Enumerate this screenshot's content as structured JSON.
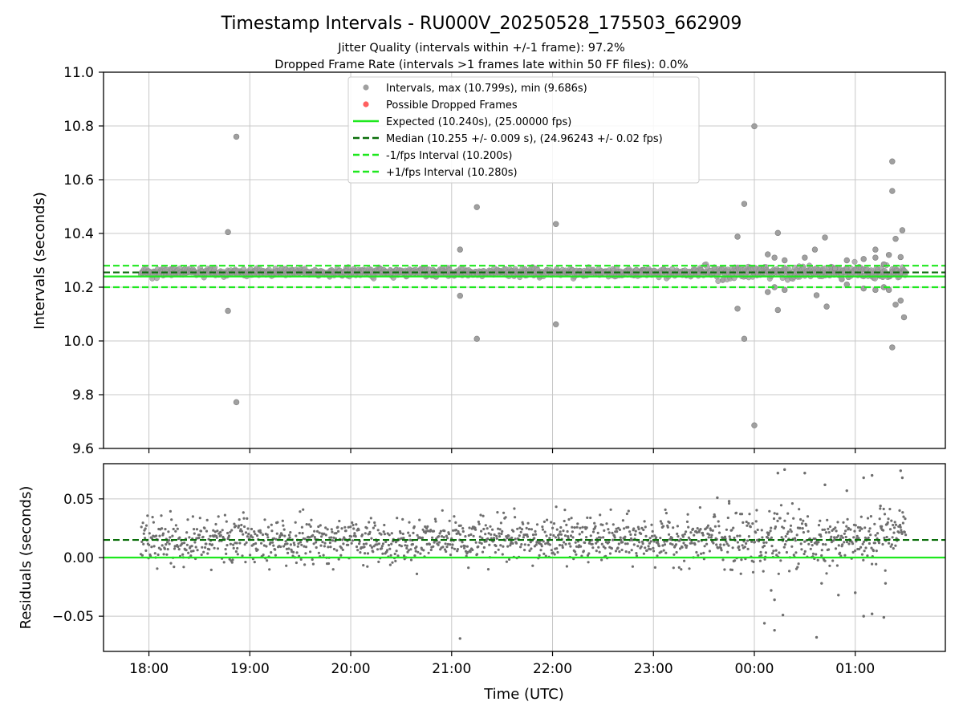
{
  "chart_data": {
    "type": "scatter",
    "title": "Timestamp Intervals - RU000V_20250528_175503_662909",
    "subtitles": [
      "Jitter Quality (intervals within +/-1 frame): 97.2%",
      "Dropped Frame Rate (intervals >1 frames late within 50 FF files): 0.0%"
    ],
    "xlabel": "Time (UTC)",
    "x_start": "17:33",
    "x_end": "01:53",
    "x_range_hours": [
      17.55,
      25.893
    ],
    "x_ticks": [
      "18:00",
      "19:00",
      "20:00",
      "21:00",
      "22:00",
      "23:00",
      "00:00",
      "01:00"
    ],
    "x_tick_hours": [
      18,
      19,
      20,
      21,
      22,
      23,
      24,
      25
    ],
    "grid": true,
    "legend_placement": "upper center",
    "colors": {
      "intervals": "#a0a0a0",
      "dropped": "#ff6060",
      "expected": "#1ee81e",
      "median": "#0a6e0a",
      "bounds": "#1ee81e",
      "residuals": "#6e6e6e"
    },
    "top_panel": {
      "ylabel": "Intervals (seconds)",
      "ylim": [
        9.6,
        11.0
      ],
      "yticks": [
        "9.6",
        "9.8",
        "10.0",
        "10.2",
        "10.4",
        "10.6",
        "10.8",
        "11.0"
      ],
      "ytick_values": [
        9.6,
        9.8,
        10.0,
        10.2,
        10.4,
        10.6,
        10.8,
        11.0
      ],
      "expected": 10.24,
      "median": 10.255,
      "lower_bound": 10.2,
      "upper_bound": 10.28,
      "data_start_hour": 17.92,
      "data_end_hour": 25.5,
      "outliers": [
        {
          "x": "18:47",
          "y": 10.405
        },
        {
          "x": "18:47",
          "y": 10.112
        },
        {
          "x": "18:52",
          "y": 10.76
        },
        {
          "x": "18:52",
          "y": 9.772
        },
        {
          "x": "21:05",
          "y": 10.34
        },
        {
          "x": "21:05",
          "y": 10.168
        },
        {
          "x": "21:15",
          "y": 10.498
        },
        {
          "x": "21:15",
          "y": 10.008
        },
        {
          "x": "22:02",
          "y": 10.435
        },
        {
          "x": "22:02",
          "y": 10.062
        },
        {
          "x": "23:50",
          "y": 10.388
        },
        {
          "x": "23:50",
          "y": 10.12
        },
        {
          "x": "23:54",
          "y": 10.51
        },
        {
          "x": "23:54",
          "y": 10.008
        },
        {
          "x": "00:00",
          "y": 10.799
        },
        {
          "x": "00:00",
          "y": 9.686
        },
        {
          "x": "00:08",
          "y": 10.322
        },
        {
          "x": "00:08",
          "y": 10.182
        },
        {
          "x": "00:12",
          "y": 10.31
        },
        {
          "x": "00:12",
          "y": 10.2
        },
        {
          "x": "00:14",
          "y": 10.402
        },
        {
          "x": "00:14",
          "y": 10.115
        },
        {
          "x": "00:18",
          "y": 10.3
        },
        {
          "x": "00:18",
          "y": 10.19
        },
        {
          "x": "00:30",
          "y": 10.31
        },
        {
          "x": "00:36",
          "y": 10.34
        },
        {
          "x": "00:37",
          "y": 10.17
        },
        {
          "x": "00:42",
          "y": 10.385
        },
        {
          "x": "00:43",
          "y": 10.128
        },
        {
          "x": "00:48",
          "y": 10.27
        },
        {
          "x": "00:52",
          "y": 10.23
        },
        {
          "x": "00:55",
          "y": 10.3
        },
        {
          "x": "00:55",
          "y": 10.21
        },
        {
          "x": "01:05",
          "y": 10.305
        },
        {
          "x": "01:05",
          "y": 10.195
        },
        {
          "x": "01:12",
          "y": 10.34
        },
        {
          "x": "01:12",
          "y": 10.31
        },
        {
          "x": "01:12",
          "y": 10.19
        },
        {
          "x": "01:17",
          "y": 10.285
        },
        {
          "x": "01:17",
          "y": 10.2
        },
        {
          "x": "01:20",
          "y": 10.32
        },
        {
          "x": "01:20",
          "y": 10.19
        },
        {
          "x": "01:22",
          "y": 10.558
        },
        {
          "x": "01:22",
          "y": 9.976
        },
        {
          "x": "01:22",
          "y": 10.668
        },
        {
          "x": "01:24",
          "y": 10.38
        },
        {
          "x": "01:24",
          "y": 10.135
        },
        {
          "x": "01:27",
          "y": 10.312
        },
        {
          "x": "01:27",
          "y": 10.15
        },
        {
          "x": "01:28",
          "y": 10.412
        },
        {
          "x": "01:29",
          "y": 10.088
        }
      ]
    },
    "bottom_panel": {
      "ylabel": "Residuals (seconds)",
      "ylim": [
        -0.08,
        0.08
      ],
      "yticks": [
        "−0.05",
        "0.00",
        "0.05"
      ],
      "ytick_values": [
        -0.05,
        0.0,
        0.05
      ],
      "zero_line": 0.0,
      "median_residual": 0.015,
      "outliers": [
        {
          "x": "21:05",
          "y": -0.069
        },
        {
          "x": "00:06",
          "y": -0.056
        },
        {
          "x": "00:12",
          "y": -0.062
        },
        {
          "x": "00:17",
          "y": -0.049
        },
        {
          "x": "00:37",
          "y": -0.068
        },
        {
          "x": "01:05",
          "y": -0.05
        },
        {
          "x": "01:10",
          "y": -0.048
        },
        {
          "x": "01:17",
          "y": -0.051
        },
        {
          "x": "00:14",
          "y": 0.072
        },
        {
          "x": "00:18",
          "y": 0.075
        },
        {
          "x": "00:30",
          "y": 0.072
        },
        {
          "x": "00:42",
          "y": 0.062
        },
        {
          "x": "00:55",
          "y": 0.057
        },
        {
          "x": "01:05",
          "y": 0.068
        },
        {
          "x": "01:10",
          "y": 0.07
        },
        {
          "x": "01:27",
          "y": 0.074
        },
        {
          "x": "01:28",
          "y": 0.068
        },
        {
          "x": "01:15",
          "y": 0.044
        },
        {
          "x": "23:38",
          "y": 0.051
        },
        {
          "x": "23:45",
          "y": 0.048
        },
        {
          "x": "00:10",
          "y": -0.028
        },
        {
          "x": "00:12",
          "y": -0.036
        },
        {
          "x": "00:40",
          "y": -0.022
        },
        {
          "x": "01:00",
          "y": -0.03
        },
        {
          "x": "01:18",
          "y": -0.022
        },
        {
          "x": "00:50",
          "y": -0.032
        }
      ]
    },
    "legend": [
      {
        "key": "intervals",
        "label": "Intervals, max (10.799s), min (9.686s)",
        "marker": "dot"
      },
      {
        "key": "dropped",
        "label": "Possible Dropped Frames",
        "marker": "dot"
      },
      {
        "key": "expected",
        "label": "Expected (10.240s), (25.00000 fps)",
        "marker": "solid"
      },
      {
        "key": "median",
        "label": "Median (10.255 +/- 0.009 s), (24.96243 +/- 0.02 fps)",
        "marker": "dashed"
      },
      {
        "key": "bounds",
        "label": "-1/fps Interval (10.200s)",
        "marker": "dashed"
      },
      {
        "key": "bounds",
        "label": "+1/fps Interval (10.280s)",
        "marker": "dashed"
      }
    ]
  }
}
